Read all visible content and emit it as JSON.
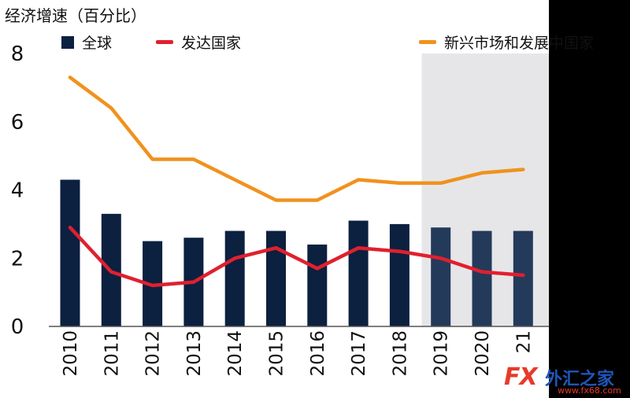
{
  "chart_data": {
    "type": "bar+line",
    "title": "经济增速（百分比）",
    "categories": [
      "2010",
      "2011",
      "2012",
      "2013",
      "2014",
      "2015",
      "2016",
      "2017",
      "2018",
      "2019",
      "2020",
      "21"
    ],
    "ylim": [
      0,
      8
    ],
    "yticks": [
      "0",
      "2",
      "4",
      "6",
      "8"
    ],
    "forecast_start_category": "2019",
    "series": [
      {
        "name": "全球",
        "kind": "bar",
        "color": "#0c2040",
        "values": [
          4.3,
          3.3,
          2.5,
          2.6,
          2.8,
          2.8,
          2.4,
          3.1,
          3.0,
          2.9,
          2.8,
          2.8
        ]
      },
      {
        "name": "发达国家",
        "kind": "line",
        "color": "#e0202e",
        "values": [
          2.9,
          1.6,
          1.2,
          1.3,
          2.0,
          2.3,
          1.7,
          2.3,
          2.2,
          2.0,
          1.6,
          1.5
        ]
      },
      {
        "name": "新兴市场和发展中国家",
        "kind": "line",
        "color": "#f0921e",
        "values": [
          7.3,
          6.4,
          4.9,
          4.9,
          4.3,
          3.7,
          3.7,
          4.3,
          4.2,
          4.2,
          4.5,
          4.6
        ]
      }
    ],
    "legend_position": "top"
  },
  "watermark": {
    "brand": "FX",
    "text": "外汇之家",
    "url": "www.fx68.com"
  }
}
